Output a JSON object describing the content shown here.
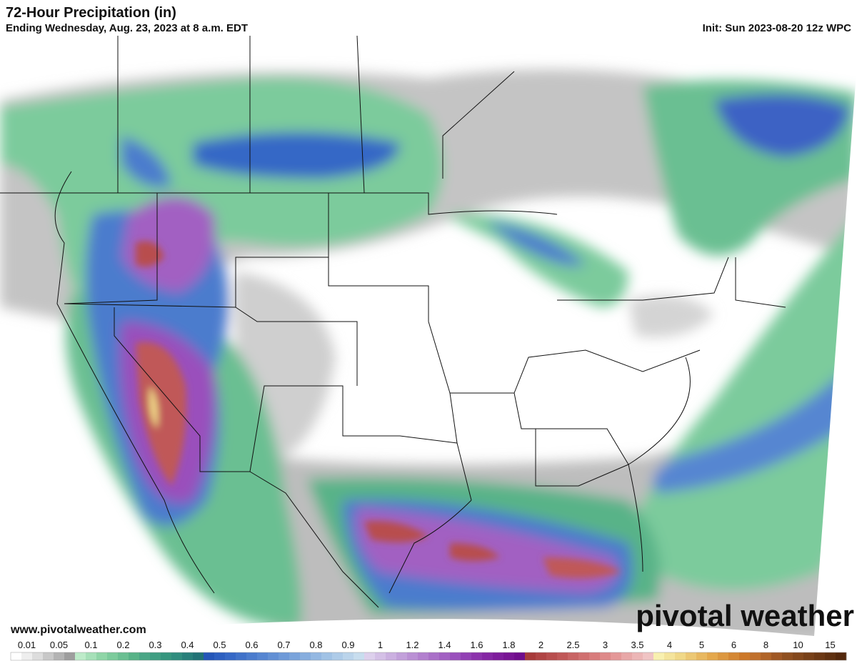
{
  "header": {
    "title": "72-Hour Precipitation (in)",
    "subtitle": "Ending Wednesday, Aug. 23, 2023 at 8 a.m. EDT",
    "init": "Init: Sun 2023-08-20 12z WPC"
  },
  "footer": {
    "website": "www.pivotalweather.com",
    "watermark": "pivotal weather"
  },
  "legend": {
    "items": [
      {
        "label": "0.01",
        "colors": [
          "#ffffff",
          "#eeeeee",
          "#dddddd"
        ]
      },
      {
        "label": "0.05",
        "colors": [
          "#c8c8c8",
          "#b3b3b3",
          "#9e9e9e"
        ]
      },
      {
        "label": "0.1",
        "colors": [
          "#bdebc9",
          "#a6e0b8",
          "#8fd5a7"
        ]
      },
      {
        "label": "0.2",
        "colors": [
          "#7ccb9c",
          "#6abf92",
          "#58b388"
        ]
      },
      {
        "label": "0.3",
        "colors": [
          "#4aa686",
          "#3f9e82",
          "#35967e"
        ]
      },
      {
        "label": "0.4",
        "colors": [
          "#2f8d7e",
          "#277f7a",
          "#217276"
        ]
      },
      {
        "label": "0.5",
        "colors": [
          "#2456b8",
          "#2c5fc0",
          "#3568c6"
        ]
      },
      {
        "label": "0.6",
        "colors": [
          "#4072c9",
          "#4b7ccd",
          "#5686d1"
        ]
      },
      {
        "label": "0.7",
        "colors": [
          "#6290d4",
          "#6e9ad8",
          "#7aa4db"
        ]
      },
      {
        "label": "0.8",
        "colors": [
          "#87aede",
          "#94b8e2",
          "#a1c2e5"
        ]
      },
      {
        "label": "0.9",
        "colors": [
          "#aecbe8",
          "#bbd4eb",
          "#c8ddee"
        ]
      },
      {
        "label": "1",
        "colors": [
          "#ddd0ec",
          "#d4c0e6",
          "#cbb0e0"
        ]
      },
      {
        "label": "1.2",
        "colors": [
          "#c2a0da",
          "#ba90d4",
          "#b280ce"
        ]
      },
      {
        "label": "1.4",
        "colors": [
          "#aa70c8",
          "#a260c2",
          "#9a50bc"
        ]
      },
      {
        "label": "1.6",
        "colors": [
          "#9240b4",
          "#8c32ac",
          "#8526a4"
        ]
      },
      {
        "label": "1.8",
        "colors": [
          "#7e1c9c",
          "#781494",
          "#700c8c"
        ]
      },
      {
        "label": "2",
        "colors": [
          "#a83a3a",
          "#b04444",
          "#b84e4e"
        ]
      },
      {
        "label": "2.5",
        "colors": [
          "#c05858",
          "#c86464",
          "#d07070"
        ]
      },
      {
        "label": "3",
        "colors": [
          "#d87c7c",
          "#de8a8a",
          "#e49898"
        ]
      },
      {
        "label": "3.5",
        "colors": [
          "#e8a8a8",
          "#ecb6b6",
          "#f0c4c4"
        ]
      },
      {
        "label": "4",
        "colors": [
          "#f8f0b0",
          "#f4e49c",
          "#f0d888"
        ]
      },
      {
        "label": "5",
        "colors": [
          "#ecc874",
          "#e8b860",
          "#e4a84c"
        ]
      },
      {
        "label": "6",
        "colors": [
          "#dc9840",
          "#d48834",
          "#cc7828"
        ]
      },
      {
        "label": "8",
        "colors": [
          "#c0702c",
          "#b06428",
          "#a05824"
        ]
      },
      {
        "label": "10",
        "colors": [
          "#905020",
          "#84481c",
          "#784018"
        ]
      },
      {
        "label": "15",
        "colors": [
          "#6c3814",
          "#603010",
          "#54280c"
        ]
      }
    ]
  }
}
